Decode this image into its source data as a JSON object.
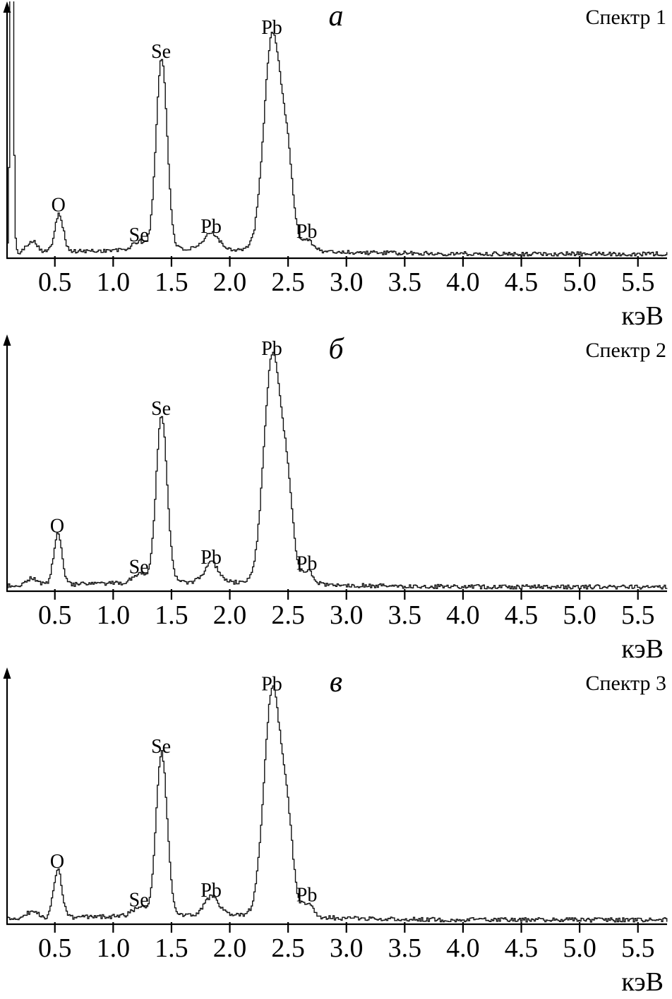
{
  "figure": {
    "description_colors": {
      "trace": "#111111",
      "axis": "#000000",
      "background": "#ffffff"
    }
  },
  "chart_data": [
    {
      "type": "line",
      "panel_label": "а",
      "series_label": "Спектр 1",
      "xlabel": "кэВ",
      "y_axis_label": "",
      "grid": false,
      "legend_position": "top-right",
      "x_range": [
        0.09,
        5.75
      ],
      "ylim": [
        0,
        1.05
      ],
      "x_ticks": [
        0.5,
        1.0,
        1.5,
        2.0,
        2.5,
        3.0,
        3.5,
        4.0,
        4.5,
        5.0,
        5.5
      ],
      "x_tick_labels": [
        "0.5",
        "1.0",
        "1.5",
        "2.0",
        "2.5",
        "3.0",
        "3.5",
        "4.0",
        "4.5",
        "5.0",
        "5.5"
      ],
      "seed": 101,
      "noise": 0.018,
      "baseline": {
        "level": 0.018,
        "hump": 0.02,
        "hump_center": 1.7,
        "hump_sigma": 0.9
      },
      "peaks": [
        {
          "element": "",
          "center": 0.125,
          "height": 1.8,
          "width": 0.013
        },
        {
          "element": "",
          "center": 0.3,
          "height": 0.05,
          "width": 0.045
        },
        {
          "element": "O",
          "center": 0.53,
          "height": 0.16,
          "width": 0.036
        },
        {
          "element": "Se",
          "center": 1.22,
          "height": 0.035,
          "width": 0.055
        },
        {
          "element": "Se",
          "center": 1.41,
          "height": 0.8,
          "width": 0.047
        },
        {
          "element": "Pb",
          "center": 1.84,
          "height": 0.07,
          "width": 0.06
        },
        {
          "element": "Pb",
          "center": 2.36,
          "height": 0.9,
          "width": 0.072
        },
        {
          "element": "",
          "center": 2.49,
          "height": 0.32,
          "width": 0.05
        },
        {
          "element": "Pb",
          "center": 2.66,
          "height": 0.05,
          "width": 0.05
        }
      ]
    },
    {
      "type": "line",
      "panel_label": "б",
      "series_label": "Спектр 2",
      "xlabel": "кэВ",
      "y_axis_label": "",
      "grid": false,
      "legend_position": "top-right",
      "x_range": [
        0.09,
        5.75
      ],
      "ylim": [
        0,
        1.05
      ],
      "x_ticks": [
        0.5,
        1.0,
        1.5,
        2.0,
        2.5,
        3.0,
        3.5,
        4.0,
        4.5,
        5.0,
        5.5
      ],
      "x_tick_labels": [
        "0.5",
        "1.0",
        "1.5",
        "2.0",
        "2.5",
        "3.0",
        "3.5",
        "4.0",
        "4.5",
        "5.0",
        "5.5"
      ],
      "seed": 202,
      "noise": 0.018,
      "baseline": {
        "level": 0.018,
        "hump": 0.02,
        "hump_center": 1.7,
        "hump_sigma": 0.9
      },
      "peaks": [
        {
          "element": "",
          "center": 0.3,
          "height": 0.03,
          "width": 0.05
        },
        {
          "element": "O",
          "center": 0.52,
          "height": 0.21,
          "width": 0.036
        },
        {
          "element": "Se",
          "center": 1.22,
          "height": 0.04,
          "width": 0.055
        },
        {
          "element": "Se",
          "center": 1.41,
          "height": 0.7,
          "width": 0.047
        },
        {
          "element": "Pb",
          "center": 1.84,
          "height": 0.08,
          "width": 0.06
        },
        {
          "element": "Pb",
          "center": 2.36,
          "height": 0.95,
          "width": 0.072
        },
        {
          "element": "",
          "center": 2.49,
          "height": 0.33,
          "width": 0.05
        },
        {
          "element": "Pb",
          "center": 2.66,
          "height": 0.055,
          "width": 0.05
        }
      ]
    },
    {
      "type": "line",
      "panel_label": "в",
      "series_label": "Спектр 3",
      "xlabel": "кэВ",
      "y_axis_label": "",
      "grid": false,
      "legend_position": "top-right",
      "x_range": [
        0.09,
        5.75
      ],
      "ylim": [
        0,
        1.05
      ],
      "x_ticks": [
        0.5,
        1.0,
        1.5,
        2.0,
        2.5,
        3.0,
        3.5,
        4.0,
        4.5,
        5.0,
        5.5
      ],
      "x_tick_labels": [
        "0.5",
        "1.0",
        "1.5",
        "2.0",
        "2.5",
        "3.0",
        "3.5",
        "4.0",
        "4.5",
        "5.0",
        "5.5"
      ],
      "seed": 303,
      "noise": 0.018,
      "baseline": {
        "level": 0.018,
        "hump": 0.02,
        "hump_center": 1.7,
        "hump_sigma": 0.9
      },
      "peaks": [
        {
          "element": "",
          "center": 0.3,
          "height": 0.03,
          "width": 0.05
        },
        {
          "element": "O",
          "center": 0.52,
          "height": 0.2,
          "width": 0.036
        },
        {
          "element": "Se",
          "center": 1.22,
          "height": 0.04,
          "width": 0.055
        },
        {
          "element": "Se",
          "center": 1.41,
          "height": 0.68,
          "width": 0.047
        },
        {
          "element": "Pb",
          "center": 1.84,
          "height": 0.08,
          "width": 0.06
        },
        {
          "element": "Pb",
          "center": 2.36,
          "height": 0.94,
          "width": 0.072
        },
        {
          "element": "",
          "center": 2.49,
          "height": 0.33,
          "width": 0.05
        },
        {
          "element": "Pb",
          "center": 2.66,
          "height": 0.06,
          "width": 0.05
        }
      ]
    }
  ]
}
